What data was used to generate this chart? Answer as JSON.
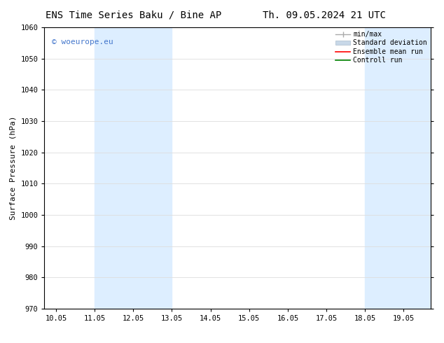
{
  "title_left": "ENS Time Series Baku / Bine AP",
  "title_right": "Th. 09.05.2024 21 UTC",
  "ylabel": "Surface Pressure (hPa)",
  "ylim": [
    970,
    1060
  ],
  "yticks": [
    970,
    980,
    990,
    1000,
    1010,
    1020,
    1030,
    1040,
    1050,
    1060
  ],
  "xtick_labels": [
    "10.05",
    "11.05",
    "12.05",
    "13.05",
    "14.05",
    "15.05",
    "16.05",
    "17.05",
    "18.05",
    "19.05"
  ],
  "xtick_positions": [
    0,
    1,
    2,
    3,
    4,
    5,
    6,
    7,
    8,
    9
  ],
  "xlim": [
    -0.3,
    9.7
  ],
  "shaded_bands": [
    {
      "x_start": 1,
      "x_end": 3
    },
    {
      "x_start": 8,
      "x_end": 9.7
    }
  ],
  "shaded_color": "#ddeeff",
  "watermark": "© woeurope.eu",
  "watermark_color": "#4477cc",
  "legend_labels": [
    "min/max",
    "Standard deviation",
    "Ensemble mean run",
    "Controll run"
  ],
  "legend_colors": [
    "#aaaaaa",
    "#c8d8e8",
    "red",
    "green"
  ],
  "bg_color": "#ffffff",
  "grid_color": "#dddddd",
  "title_fontsize": 10,
  "tick_fontsize": 7.5,
  "ylabel_fontsize": 8,
  "watermark_fontsize": 8,
  "legend_fontsize": 7
}
